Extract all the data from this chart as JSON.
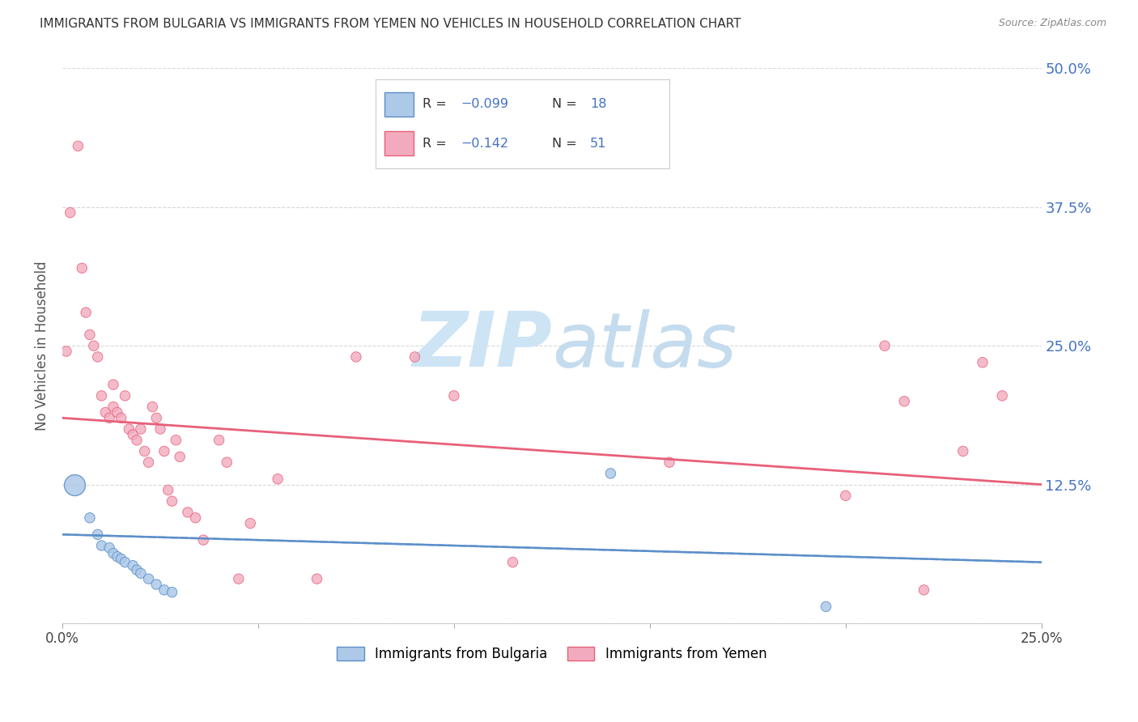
{
  "title": "IMMIGRANTS FROM BULGARIA VS IMMIGRANTS FROM YEMEN NO VEHICLES IN HOUSEHOLD CORRELATION CHART",
  "source": "Source: ZipAtlas.com",
  "ylabel": "No Vehicles in Household",
  "x_ticks": [
    0.0,
    0.05,
    0.1,
    0.15,
    0.2,
    0.25
  ],
  "y_ticks": [
    0.0,
    0.125,
    0.25,
    0.375,
    0.5
  ],
  "y_tick_labels": [
    "",
    "12.5%",
    "25.0%",
    "37.5%",
    "50.0%"
  ],
  "xlim": [
    0.0,
    0.25
  ],
  "ylim": [
    0.0,
    0.5
  ],
  "bulgaria_color": "#adc9e8",
  "yemen_color": "#f2abbe",
  "trendline_bulgaria_color": "#5b8fc9",
  "trendline_yemen_color": "#e8607a",
  "accent_blue": "#4472c4",
  "watermark_zip_color": "#cce0f5",
  "watermark_atlas_color": "#c8dff0",
  "bulgaria_scatter_x": [
    0.003,
    0.007,
    0.009,
    0.01,
    0.012,
    0.013,
    0.014,
    0.015,
    0.016,
    0.018,
    0.019,
    0.02,
    0.022,
    0.024,
    0.026,
    0.028,
    0.14,
    0.195
  ],
  "bulgaria_scatter_y": [
    0.125,
    0.095,
    0.08,
    0.07,
    0.068,
    0.063,
    0.06,
    0.058,
    0.055,
    0.052,
    0.048,
    0.045,
    0.04,
    0.035,
    0.03,
    0.028,
    0.135,
    0.015
  ],
  "bulgaria_sizes": [
    350,
    80,
    80,
    80,
    80,
    80,
    80,
    80,
    80,
    80,
    80,
    80,
    80,
    80,
    80,
    80,
    80,
    80
  ],
  "yemen_scatter_x": [
    0.001,
    0.002,
    0.004,
    0.005,
    0.006,
    0.007,
    0.008,
    0.009,
    0.01,
    0.011,
    0.012,
    0.013,
    0.013,
    0.014,
    0.015,
    0.016,
    0.017,
    0.018,
    0.019,
    0.02,
    0.021,
    0.022,
    0.023,
    0.024,
    0.025,
    0.026,
    0.027,
    0.028,
    0.029,
    0.03,
    0.032,
    0.034,
    0.036,
    0.04,
    0.042,
    0.045,
    0.048,
    0.055,
    0.065,
    0.075,
    0.09,
    0.1,
    0.115,
    0.155,
    0.2,
    0.21,
    0.215,
    0.22,
    0.23,
    0.235,
    0.24
  ],
  "yemen_scatter_y": [
    0.245,
    0.37,
    0.43,
    0.32,
    0.28,
    0.26,
    0.25,
    0.24,
    0.205,
    0.19,
    0.185,
    0.215,
    0.195,
    0.19,
    0.185,
    0.205,
    0.175,
    0.17,
    0.165,
    0.175,
    0.155,
    0.145,
    0.195,
    0.185,
    0.175,
    0.155,
    0.12,
    0.11,
    0.165,
    0.15,
    0.1,
    0.095,
    0.075,
    0.165,
    0.145,
    0.04,
    0.09,
    0.13,
    0.04,
    0.24,
    0.24,
    0.205,
    0.055,
    0.145,
    0.115,
    0.25,
    0.2,
    0.03,
    0.155,
    0.235,
    0.205
  ],
  "yemen_sizes": [
    80,
    80,
    80,
    80,
    80,
    80,
    80,
    80,
    80,
    80,
    80,
    80,
    80,
    80,
    80,
    80,
    80,
    80,
    80,
    80,
    80,
    80,
    80,
    80,
    80,
    80,
    80,
    80,
    80,
    80,
    80,
    80,
    80,
    80,
    80,
    80,
    80,
    80,
    80,
    80,
    80,
    80,
    80,
    80,
    80,
    80,
    80,
    80,
    80,
    80,
    80
  ],
  "background_color": "#ffffff",
  "grid_color": "#d8d8d8",
  "title_color": "#333333",
  "right_axis_color": "#4472c4",
  "bottom_axis_color": "#333333",
  "trendline_bulgaria_start_y": 0.08,
  "trendline_bulgaria_end_y": 0.055,
  "trendline_yemen_start_y": 0.185,
  "trendline_yemen_end_y": 0.125
}
